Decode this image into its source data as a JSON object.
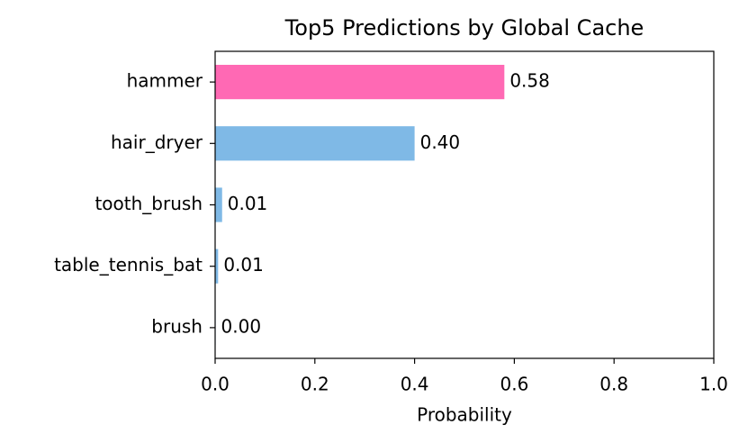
{
  "chart_data": {
    "type": "barh",
    "title": "Top5 Predictions by Global Cache",
    "x_label": "Probability",
    "categories": [
      "hammer",
      "hair_dryer",
      "tooth_brush",
      "table_tennis_bat",
      "brush"
    ],
    "values": [
      0.58,
      0.4,
      0.014,
      0.006,
      0.001
    ],
    "value_labels": [
      "0.58",
      "0.40",
      "0.01",
      "0.01",
      "0.00"
    ],
    "colors": [
      "#ff69b4",
      "#7fb9e6",
      "#7fb9e6",
      "#7fb9e6",
      "#7fb9e6"
    ],
    "xlim": [
      0,
      1
    ],
    "xticks": [
      {
        "value": 0,
        "label": "0.0"
      },
      0.2,
      0.4,
      0.6,
      0.8,
      {
        "value": 1,
        "label": "1.0"
      }
    ],
    "grid": false
  }
}
